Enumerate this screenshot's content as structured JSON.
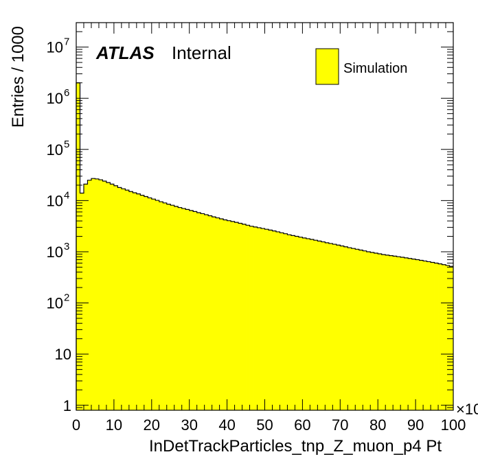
{
  "chart_data": {
    "type": "bar",
    "xlabel": "InDetTrackParticles_tnp_Z_muon_p4 Pt",
    "ylabel": "Entries / 1000",
    "x_multiplier_label": "×10",
    "ylog": true,
    "xlim": [
      0,
      100
    ],
    "ylim": [
      0.8,
      30000000
    ],
    "bin_width": 1,
    "x_ticks": [
      {
        "value": 0,
        "label": "0"
      },
      {
        "value": 10,
        "label": "10"
      },
      {
        "value": 20,
        "label": "20"
      },
      {
        "value": 30,
        "label": "30"
      },
      {
        "value": 40,
        "label": "40"
      },
      {
        "value": 50,
        "label": "50"
      },
      {
        "value": 60,
        "label": "60"
      },
      {
        "value": 70,
        "label": "70"
      },
      {
        "value": 80,
        "label": "80"
      },
      {
        "value": 90,
        "label": "90"
      },
      {
        "value": 100,
        "label": "100"
      }
    ],
    "y_ticks": [
      {
        "value": 1,
        "base": "1",
        "exp": ""
      },
      {
        "value": 10,
        "base": "10",
        "exp": ""
      },
      {
        "value": 100,
        "base": "10",
        "exp": "2"
      },
      {
        "value": 1000,
        "base": "10",
        "exp": "3"
      },
      {
        "value": 10000,
        "base": "10",
        "exp": "4"
      },
      {
        "value": 100000,
        "base": "10",
        "exp": "5"
      },
      {
        "value": 1000000,
        "base": "10",
        "exp": "6"
      },
      {
        "value": 10000000,
        "base": "10",
        "exp": "7"
      }
    ],
    "series": [
      {
        "name": "Simulation",
        "color": "#ffff00",
        "values": [
          2000000,
          14000,
          21000,
          25000,
          27000,
          26500,
          25500,
          24000,
          22500,
          21000,
          19500,
          18000,
          17000,
          16000,
          15000,
          14200,
          13500,
          12700,
          12000,
          11300,
          10700,
          10100,
          9500,
          9000,
          8500,
          8100,
          7700,
          7300,
          7000,
          6700,
          6400,
          6100,
          5800,
          5550,
          5300,
          5050,
          4800,
          4600,
          4400,
          4200,
          4050,
          3900,
          3750,
          3600,
          3450,
          3300,
          3150,
          3050,
          2950,
          2850,
          2750,
          2650,
          2550,
          2450,
          2350,
          2250,
          2150,
          2070,
          2000,
          1930,
          1860,
          1800,
          1740,
          1680,
          1620,
          1560,
          1500,
          1450,
          1400,
          1350,
          1300,
          1250,
          1200,
          1160,
          1120,
          1080,
          1040,
          1000,
          970,
          940,
          910,
          880,
          860,
          840,
          820,
          800,
          780,
          760,
          740,
          720,
          700,
          680,
          660,
          640,
          620,
          600,
          580,
          560,
          540,
          520
        ]
      }
    ],
    "legend": {
      "position": "top-right",
      "entries": [
        "Simulation"
      ]
    }
  },
  "labels": {
    "atlas": "ATLAS",
    "internal": "Internal"
  }
}
